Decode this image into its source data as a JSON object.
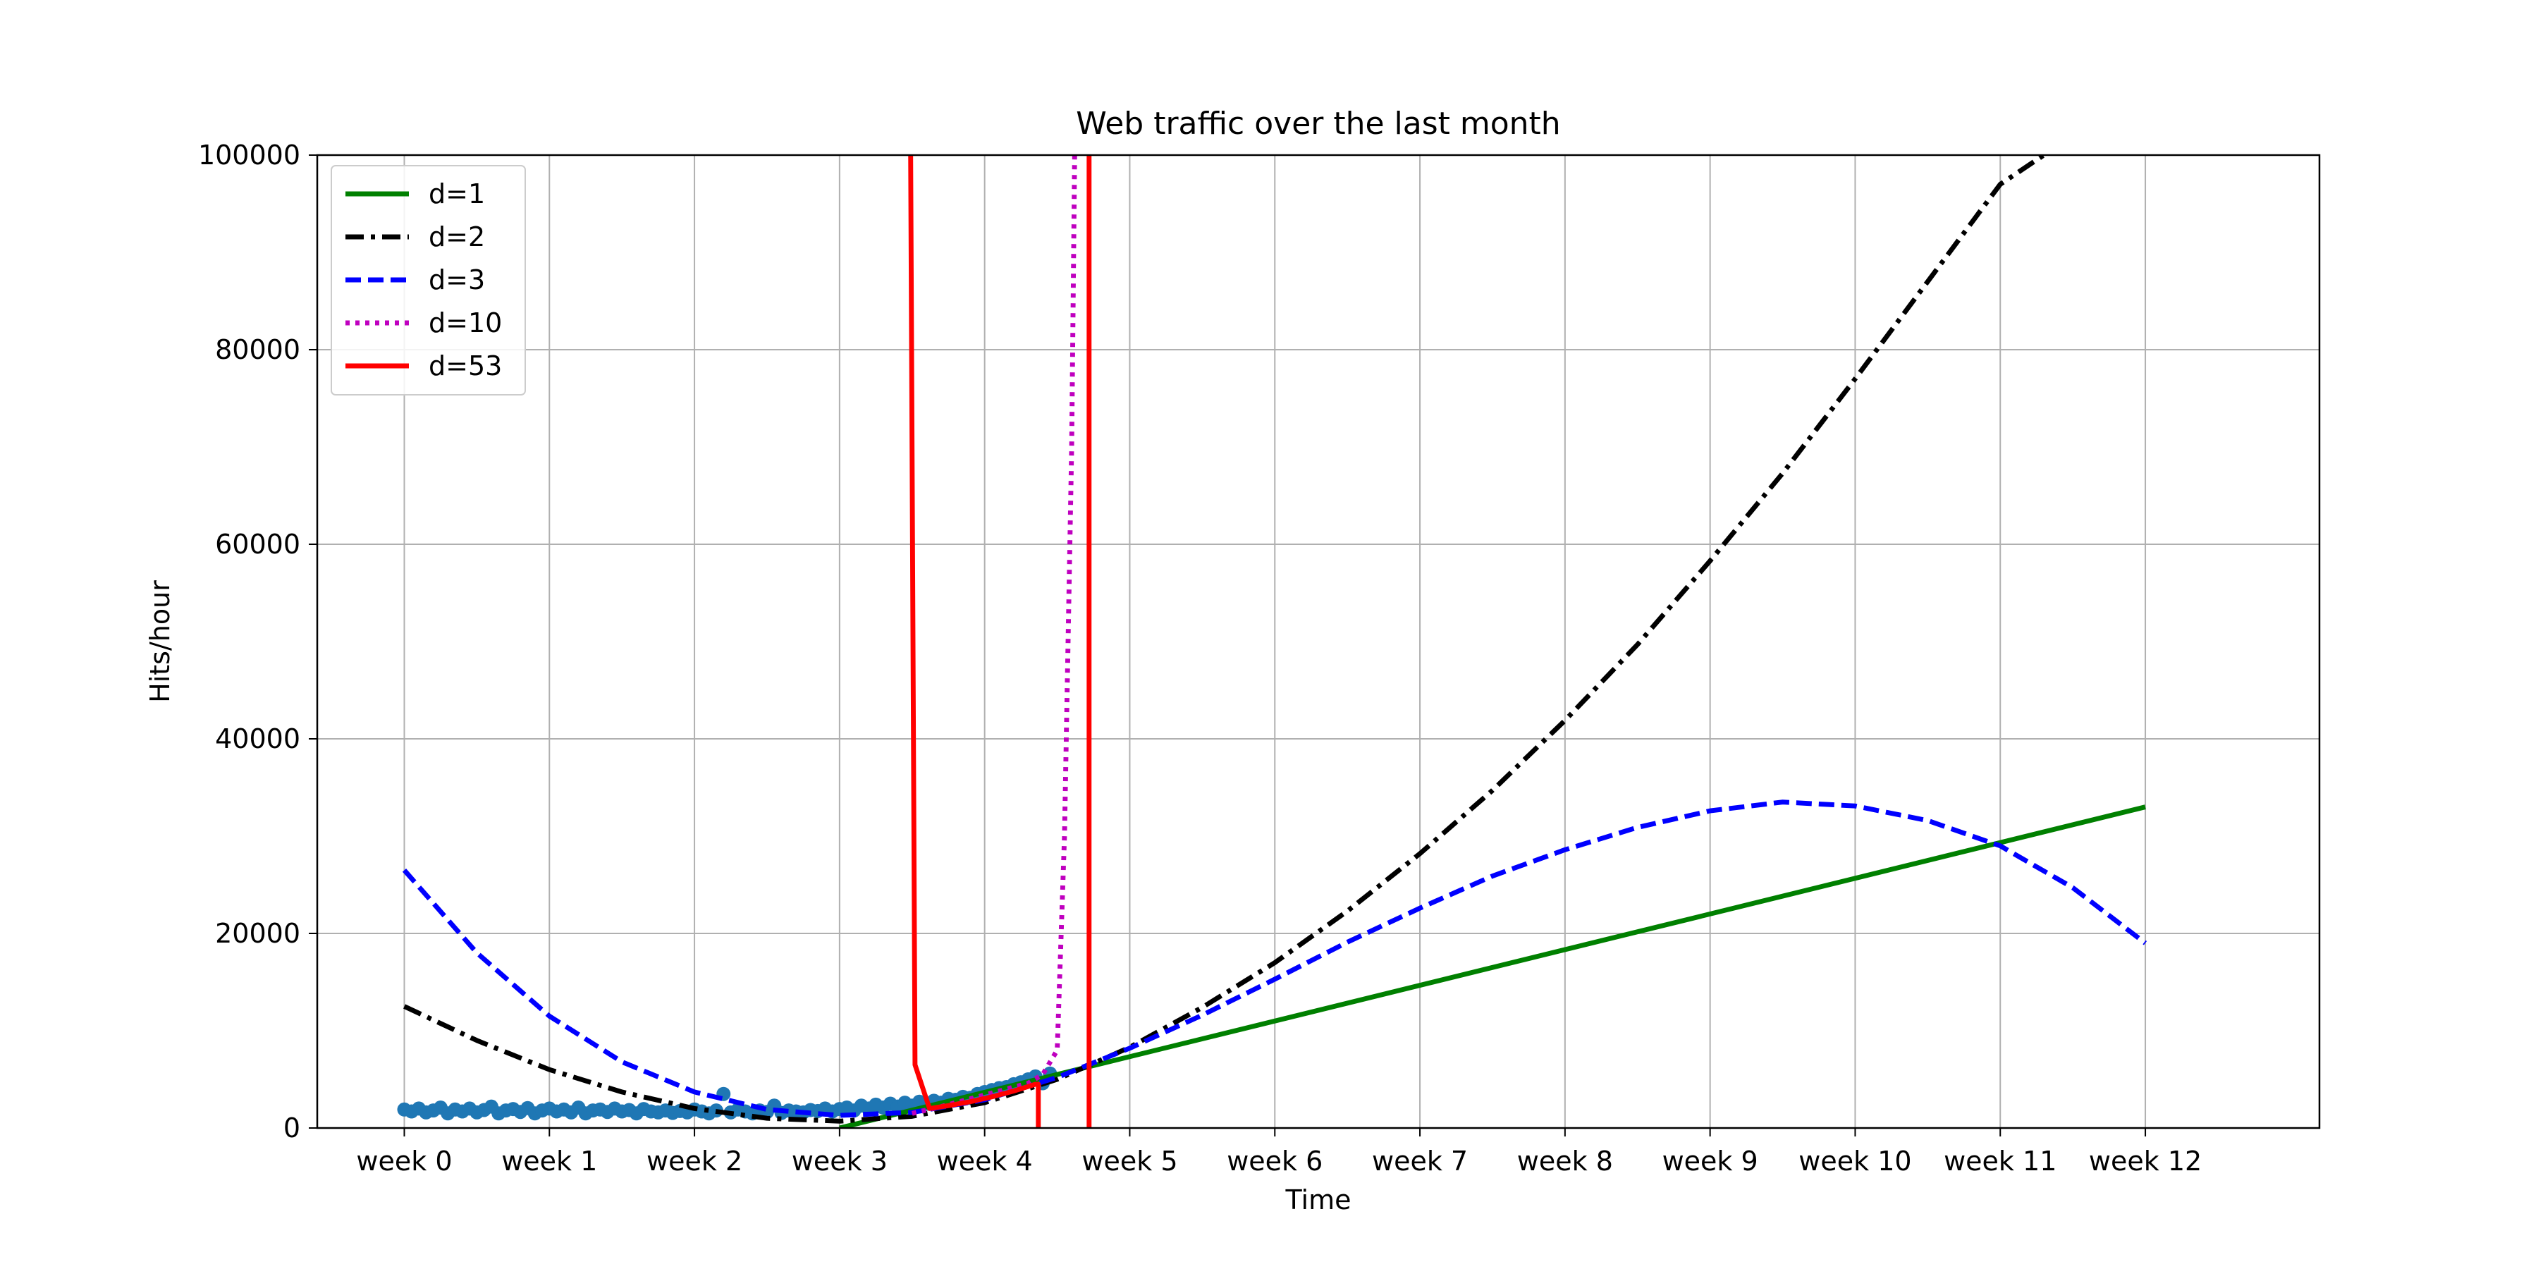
{
  "chart_data": {
    "type": "line",
    "title": "Web traffic over the last month",
    "xlabel": "Time",
    "ylabel": "Hits/hour",
    "xlim": [
      -0.6,
      13.2
    ],
    "ylim": [
      0,
      100000
    ],
    "x_unit": "week",
    "xticks": [
      {
        "value": 0,
        "label": "week 0"
      },
      {
        "value": 1,
        "label": "week 1"
      },
      {
        "value": 2,
        "label": "week 2"
      },
      {
        "value": 3,
        "label": "week 3"
      },
      {
        "value": 4,
        "label": "week 4"
      },
      {
        "value": 5,
        "label": "week 5"
      },
      {
        "value": 6,
        "label": "week 6"
      },
      {
        "value": 7,
        "label": "week 7"
      },
      {
        "value": 8,
        "label": "week 8"
      },
      {
        "value": 9,
        "label": "week 9"
      },
      {
        "value": 10,
        "label": "week 10"
      },
      {
        "value": 11,
        "label": "week 11"
      },
      {
        "value": 12,
        "label": "week 12"
      }
    ],
    "yticks": [
      {
        "value": 0,
        "label": "0"
      },
      {
        "value": 20000,
        "label": "20000"
      },
      {
        "value": 40000,
        "label": "40000"
      },
      {
        "value": 60000,
        "label": "60000"
      },
      {
        "value": 80000,
        "label": "80000"
      },
      {
        "value": 100000,
        "label": "100000"
      }
    ],
    "grid": true,
    "legend_position": "top-left",
    "scatter": {
      "color": "#1f77b4",
      "points": [
        [
          0.0,
          1900
        ],
        [
          0.05,
          1700
        ],
        [
          0.1,
          2000
        ],
        [
          0.15,
          1600
        ],
        [
          0.2,
          1800
        ],
        [
          0.25,
          2100
        ],
        [
          0.3,
          1500
        ],
        [
          0.35,
          1900
        ],
        [
          0.4,
          1700
        ],
        [
          0.45,
          2000
        ],
        [
          0.5,
          1600
        ],
        [
          0.55,
          1850
        ],
        [
          0.6,
          2200
        ],
        [
          0.65,
          1500
        ],
        [
          0.7,
          1800
        ],
        [
          0.75,
          1950
        ],
        [
          0.8,
          1650
        ],
        [
          0.85,
          2050
        ],
        [
          0.9,
          1500
        ],
        [
          0.95,
          1800
        ],
        [
          1.0,
          2000
        ],
        [
          1.05,
          1700
        ],
        [
          1.1,
          1900
        ],
        [
          1.15,
          1600
        ],
        [
          1.2,
          2100
        ],
        [
          1.25,
          1500
        ],
        [
          1.3,
          1800
        ],
        [
          1.35,
          1900
        ],
        [
          1.4,
          1650
        ],
        [
          1.45,
          2000
        ],
        [
          1.5,
          1700
        ],
        [
          1.55,
          1850
        ],
        [
          1.6,
          1500
        ],
        [
          1.65,
          1950
        ],
        [
          1.7,
          1700
        ],
        [
          1.75,
          1600
        ],
        [
          1.8,
          1800
        ],
        [
          1.85,
          1550
        ],
        [
          1.9,
          1750
        ],
        [
          1.95,
          1600
        ],
        [
          2.0,
          1900
        ],
        [
          2.05,
          1700
        ],
        [
          2.1,
          1500
        ],
        [
          2.15,
          1800
        ],
        [
          2.2,
          3500
        ],
        [
          2.25,
          1600
        ],
        [
          2.3,
          1900
        ],
        [
          2.35,
          1700
        ],
        [
          2.4,
          1500
        ],
        [
          2.45,
          1800
        ],
        [
          2.5,
          1650
        ],
        [
          2.55,
          2300
        ],
        [
          2.6,
          1550
        ],
        [
          2.65,
          1800
        ],
        [
          2.7,
          1700
        ],
        [
          2.75,
          1600
        ],
        [
          2.8,
          1850
        ],
        [
          2.85,
          1750
        ],
        [
          2.9,
          2000
        ],
        [
          2.95,
          1700
        ],
        [
          3.0,
          1950
        ],
        [
          3.05,
          2100
        ],
        [
          3.1,
          1800
        ],
        [
          3.15,
          2300
        ],
        [
          3.2,
          2000
        ],
        [
          3.25,
          2400
        ],
        [
          3.3,
          2100
        ],
        [
          3.35,
          2500
        ],
        [
          3.4,
          2200
        ],
        [
          3.45,
          2600
        ],
        [
          3.5,
          2300
        ],
        [
          3.55,
          2700
        ],
        [
          3.6,
          2500
        ],
        [
          3.65,
          2800
        ],
        [
          3.7,
          2600
        ],
        [
          3.75,
          3000
        ],
        [
          3.8,
          2900
        ],
        [
          3.85,
          3200
        ],
        [
          3.9,
          3100
        ],
        [
          3.95,
          3500
        ],
        [
          4.0,
          3700
        ],
        [
          4.05,
          3900
        ],
        [
          4.1,
          4100
        ],
        [
          4.15,
          4200
        ],
        [
          4.2,
          4500
        ],
        [
          4.25,
          4700
        ],
        [
          4.3,
          5000
        ],
        [
          4.35,
          5300
        ],
        [
          4.4,
          4600
        ],
        [
          4.45,
          5600
        ]
      ]
    },
    "series": [
      {
        "name": "d=1",
        "color": "#008000",
        "dash": "solid",
        "width": 3,
        "x": [
          3.0,
          12.0
        ],
        "y": [
          0,
          33000
        ]
      },
      {
        "name": "d=2",
        "color": "#000000",
        "dash": "dashdot",
        "width": 3,
        "x": [
          0,
          0.5,
          1,
          1.5,
          2,
          2.5,
          3,
          3.5,
          4,
          4.5,
          5,
          5.5,
          6,
          6.5,
          7,
          7.5,
          8,
          8.5,
          9,
          9.5,
          10,
          10.5,
          11,
          11.3
        ],
        "y": [
          12500,
          9000,
          6000,
          3700,
          2000,
          1000,
          700,
          1200,
          2600,
          5000,
          8300,
          12400,
          17000,
          22300,
          28200,
          34700,
          41900,
          49700,
          58300,
          67300,
          77000,
          87000,
          97000,
          100000
        ]
      },
      {
        "name": "d=3",
        "color": "#0000ff",
        "dash": "dashed",
        "width": 3,
        "x": [
          0,
          0.5,
          1,
          1.5,
          2,
          2.5,
          3,
          3.5,
          4,
          4.5,
          5,
          5.5,
          6,
          6.5,
          7,
          7.5,
          8,
          8.5,
          9,
          9.5,
          10,
          10.5,
          11,
          11.5,
          12
        ],
        "y": [
          26500,
          18000,
          11500,
          6800,
          3700,
          1900,
          1300,
          1600,
          2900,
          5200,
          8200,
          11600,
          15300,
          19100,
          22600,
          25900,
          28600,
          30900,
          32600,
          33500,
          33100,
          31600,
          29000,
          24700,
          19000
        ]
      },
      {
        "name": "d=10",
        "color": "#bf00bf",
        "dash": "dotted",
        "width": 3,
        "x": [
          3.5,
          3.7,
          3.9,
          4.1,
          4.3,
          4.4,
          4.5,
          4.55,
          4.6,
          4.62
        ],
        "y": [
          1500,
          2200,
          3000,
          3800,
          4600,
          5500,
          8000,
          30000,
          70000,
          100000
        ]
      },
      {
        "name": "d=53",
        "color": "#ff0000",
        "dash": "solid",
        "width": 3,
        "x": [
          3.49,
          3.52,
          3.62,
          3.75,
          3.9,
          4.05,
          4.2,
          4.35,
          4.37,
          4.37
        ],
        "y": [
          100000,
          6500,
          2000,
          2300,
          2700,
          3200,
          3800,
          4500,
          4500,
          0
        ],
        "extra": {
          "x": [
            4.72,
            4.72
          ],
          "y": [
            0,
            100000
          ]
        }
      }
    ]
  }
}
